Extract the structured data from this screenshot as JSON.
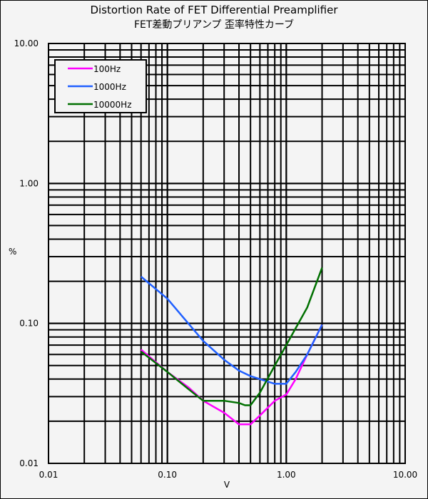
{
  "chart_data": {
    "type": "line",
    "title": "Distortion Rate of FET Differential Preamplifier",
    "subtitle": "FET差動プリアンプ 歪率特性カーブ",
    "xlabel": "V",
    "ylabel": "%",
    "xscale": "log",
    "yscale": "log",
    "xlim": [
      0.01,
      10
    ],
    "ylim": [
      0.01,
      10
    ],
    "x_tick_labels": [
      "0.01",
      "0.10",
      "1.00",
      "10.00"
    ],
    "y_tick_labels": [
      "0.01",
      "0.10",
      "1.00",
      "10.00"
    ],
    "grid": true,
    "legend_position": "upper left",
    "series": [
      {
        "name": "100Hz",
        "color": "#ff00ff",
        "x": [
          0.06,
          0.1,
          0.15,
          0.2,
          0.3,
          0.4,
          0.5,
          0.6,
          0.8,
          1.0,
          1.2,
          1.5,
          2.0
        ],
        "y": [
          0.065,
          0.045,
          0.035,
          0.028,
          0.023,
          0.019,
          0.019,
          0.022,
          0.028,
          0.031,
          0.04,
          0.06,
          0.098
        ]
      },
      {
        "name": "1000Hz",
        "color": "#2060ff",
        "x": [
          0.06,
          0.1,
          0.15,
          0.2,
          0.3,
          0.4,
          0.5,
          0.6,
          0.8,
          1.0,
          1.2,
          1.5,
          2.0
        ],
        "y": [
          0.216,
          0.15,
          0.1,
          0.075,
          0.055,
          0.046,
          0.042,
          0.04,
          0.037,
          0.037,
          0.045,
          0.06,
          0.098
        ]
      },
      {
        "name": "10000Hz",
        "color": "#007000",
        "x": [
          0.06,
          0.1,
          0.15,
          0.2,
          0.25,
          0.3,
          0.4,
          0.45,
          0.5,
          0.6,
          0.8,
          1.0,
          1.5,
          2.0
        ],
        "y": [
          0.063,
          0.045,
          0.034,
          0.028,
          0.028,
          0.028,
          0.027,
          0.026,
          0.026,
          0.032,
          0.05,
          0.07,
          0.13,
          0.25
        ]
      }
    ]
  }
}
